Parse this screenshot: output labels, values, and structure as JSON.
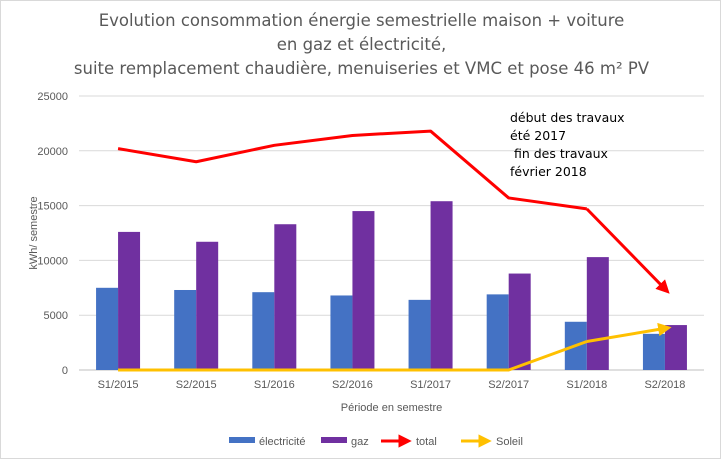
{
  "chart_data": {
    "type": "bar",
    "title_lines": [
      "Evolution consommation énergie semestrielle maison + voiture",
      "en gaz et électricité,",
      "suite remplacement chaudière, menuiseries et VMC et pose 46 m² PV"
    ],
    "xlabel": "Période en semestre",
    "ylabel": "kWh/ semestre",
    "ylim": [
      0,
      25000
    ],
    "yticks": [
      0,
      5000,
      10000,
      15000,
      20000,
      25000
    ],
    "ytick_labels": [
      "0",
      "5000",
      "10000",
      "15000",
      "20000",
      "25000"
    ],
    "grid": true,
    "legend_position": "bottom",
    "categories": [
      "S1/2015",
      "S2/2015",
      "S1/2016",
      "S2/2016",
      "S1/2017",
      "S2/2017",
      "S1/2018",
      "S2/2018"
    ],
    "series": [
      {
        "name": "électricité",
        "kind": "bar",
        "color": "#4472C4",
        "values": [
          7500,
          7300,
          7100,
          6800,
          6400,
          6900,
          4400,
          3300
        ]
      },
      {
        "name": "gaz",
        "kind": "bar",
        "color": "#7030A0",
        "values": [
          12600,
          11700,
          13300,
          14500,
          15400,
          8800,
          10300,
          4100
        ]
      },
      {
        "name": "total",
        "kind": "line",
        "color": "#FF0000",
        "values": [
          20200,
          19000,
          20500,
          21400,
          21800,
          15700,
          14700,
          7400
        ]
      },
      {
        "name": "Soleil",
        "kind": "line",
        "color": "#FFC000",
        "values": [
          0,
          0,
          0,
          0,
          0,
          0,
          2600,
          3800
        ]
      }
    ],
    "annotation": [
      "début des travaux",
      "été 2017",
      " fin des travaux",
      "février 2018"
    ]
  }
}
